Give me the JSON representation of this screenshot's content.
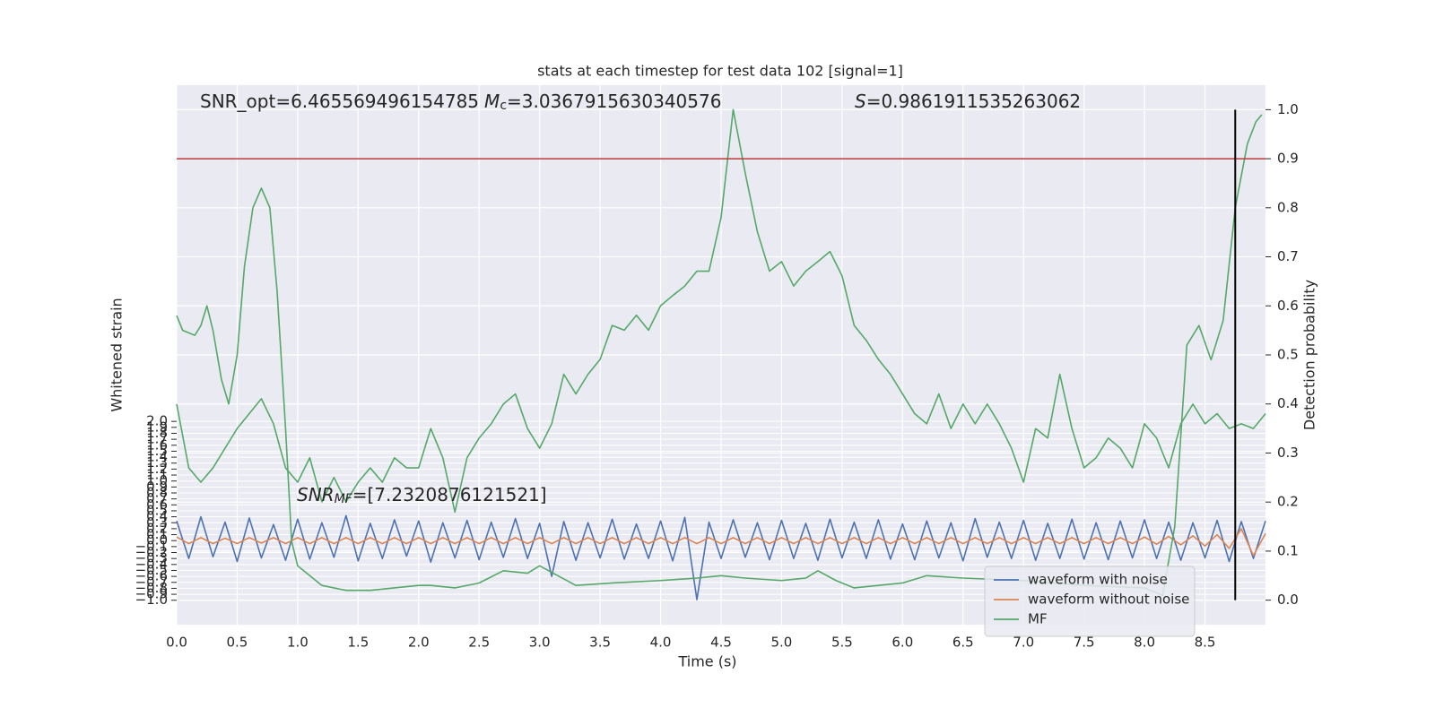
{
  "chart_data": {
    "type": "line",
    "title": "stats at each timestep for test data 102 [signal=1]",
    "xlabel": "Time (s)",
    "ylabel": "Whitened strain",
    "y2label": "Detection probability",
    "annotations": [
      [
        "SNR_opt=6.465569496154785",
        "M",
        "c",
        "=3.0367915630340576"
      ],
      [
        "S",
        "=0.9861911535263062"
      ],
      [
        "SNR",
        "MF",
        "=[7.2320876121521]"
      ]
    ],
    "xlim": [
      0,
      9
    ],
    "ylim": [
      -1.41,
      7.64
    ],
    "y2lim": [
      -0.05,
      1.05
    ],
    "xticks": [
      {
        "value": 0,
        "label": "0.0"
      },
      0.5,
      {
        "value": 1,
        "label": "1.0"
      },
      1.5,
      {
        "value": 2,
        "label": "2.0"
      },
      2.5,
      {
        "value": 3,
        "label": "3.0"
      },
      3.5,
      {
        "value": 4,
        "label": "4.0"
      },
      4.5,
      {
        "value": 5,
        "label": "5.0"
      },
      5.5,
      {
        "value": 6,
        "label": "6.0"
      },
      6.5,
      {
        "value": 7,
        "label": "7.0"
      },
      7.5,
      {
        "value": 8,
        "label": "8.0"
      },
      8.5
    ],
    "yticks": [
      {
        "value": -1,
        "label": "−1.0"
      },
      {
        "value": -0.9,
        "label": "−0.9"
      },
      {
        "value": -0.8,
        "label": "−0.8"
      },
      {
        "value": -0.7,
        "label": "−0.7"
      },
      {
        "value": -0.6,
        "label": "−0.6"
      },
      {
        "value": -0.5,
        "label": "−0.5"
      },
      {
        "value": -0.4,
        "label": "−0.4"
      },
      {
        "value": -0.3,
        "label": "−0.3"
      },
      {
        "value": -0.2,
        "label": "−0.2"
      },
      {
        "value": -0.1,
        "label": "−0.1"
      },
      {
        "value": 0,
        "label": "0.0"
      },
      0.1,
      0.2,
      0.3,
      0.4,
      0.5,
      0.6,
      0.7,
      0.8,
      0.9,
      {
        "value": 1,
        "label": "1.0"
      },
      1.1,
      1.2,
      1.3,
      1.4,
      1.5,
      1.6,
      1.7,
      1.8,
      1.9,
      {
        "value": 2,
        "label": "2.0"
      }
    ],
    "y2ticks": [
      {
        "value": 0,
        "label": "0.0"
      },
      0.1,
      0.2,
      0.3,
      0.4,
      0.5,
      0.6,
      0.7,
      0.8,
      0.9,
      {
        "value": 1,
        "label": "1.0"
      }
    ],
    "grid": true,
    "legend": "lower right",
    "x": [
      0,
      0.1,
      0.2,
      0.3,
      0.4,
      0.5,
      0.6,
      0.7,
      0.8,
      0.9,
      1,
      1.1,
      1.2,
      1.3,
      1.4,
      1.5,
      1.6,
      1.7,
      1.8,
      1.9,
      2,
      2.1,
      2.2,
      2.3,
      2.4,
      2.5,
      2.6,
      2.7,
      2.8,
      2.9,
      3,
      3.1,
      3.2,
      3.3,
      3.4,
      3.5,
      3.6,
      3.7,
      3.8,
      3.9,
      4,
      4.1,
      4.2,
      4.3,
      4.4,
      4.5,
      4.6,
      4.7,
      4.8,
      4.9,
      5,
      5.1,
      5.2,
      5.3,
      5.4,
      5.5,
      5.6,
      5.7,
      5.8,
      5.9,
      6,
      6.1,
      6.2,
      6.3,
      6.4,
      6.5,
      6.6,
      6.7,
      6.8,
      6.9,
      7,
      7.1,
      7.2,
      7.3,
      7.4,
      7.5,
      7.6,
      7.7,
      7.8,
      7.9,
      8,
      8.1,
      8.2,
      8.3,
      8.4,
      8.5,
      8.6,
      8.7,
      8.8,
      8.9,
      9
    ],
    "series": [
      {
        "name": "waveform with noise",
        "color": "#4c72b0",
        "values": [
          0.33,
          -0.3,
          0.4,
          -0.27,
          0.31,
          -0.35,
          0.38,
          -0.29,
          0.27,
          -0.33,
          0.36,
          -0.31,
          0.3,
          -0.28,
          0.42,
          -0.34,
          0.29,
          -0.3,
          0.35,
          -0.26,
          0.33,
          -0.36,
          0.3,
          -0.29,
          0.34,
          -0.32,
          0.31,
          -0.28,
          0.37,
          -0.3,
          0.29,
          -0.6,
          0.32,
          -0.33,
          0.3,
          -0.29,
          0.36,
          -0.31,
          0.28,
          -0.3,
          0.33,
          -0.34,
          0.39,
          -0.99,
          0.31,
          -0.3,
          0.35,
          -0.28,
          0.3,
          -0.32,
          0.34,
          -0.3,
          0.29,
          -0.33,
          0.36,
          -0.29,
          0.31,
          -0.3,
          0.35,
          -0.31,
          0.28,
          -0.32,
          0.33,
          -0.29,
          0.3,
          -0.34,
          0.37,
          -0.28,
          0.31,
          -0.3,
          0.34,
          -0.33,
          0.29,
          -0.3,
          0.36,
          -0.31,
          0.3,
          -0.32,
          0.33,
          -0.29,
          0.35,
          -0.3,
          0.31,
          -0.33,
          0.3,
          -0.29,
          0.34,
          -0.35,
          0.32,
          -0.3,
          0.33
        ]
      },
      {
        "name": "waveform without noise",
        "color": "#dd8452",
        "values": [
          0.06,
          -0.05,
          0.05,
          -0.05,
          0.04,
          -0.05,
          0.05,
          -0.04,
          0.05,
          -0.05,
          0.05,
          -0.05,
          0.05,
          -0.05,
          0.05,
          -0.05,
          0.05,
          -0.05,
          0.05,
          -0.05,
          0.05,
          -0.05,
          0.05,
          -0.05,
          0.05,
          -0.05,
          0.05,
          -0.05,
          0.05,
          -0.05,
          0.05,
          -0.05,
          0.05,
          -0.05,
          0.05,
          -0.05,
          0.05,
          -0.05,
          0.05,
          -0.05,
          0.05,
          -0.05,
          0.05,
          -0.05,
          0.05,
          -0.05,
          0.05,
          -0.05,
          0.05,
          -0.05,
          0.05,
          -0.05,
          0.05,
          -0.05,
          0.05,
          -0.05,
          0.05,
          -0.05,
          0.05,
          -0.05,
          0.05,
          -0.05,
          0.05,
          -0.05,
          0.05,
          -0.05,
          0.05,
          -0.05,
          0.05,
          -0.05,
          0.05,
          -0.05,
          0.05,
          -0.05,
          0.05,
          -0.05,
          0.05,
          -0.05,
          0.05,
          -0.05,
          0.06,
          -0.06,
          0.07,
          -0.07,
          0.08,
          -0.09,
          0.1,
          -0.13,
          0.2,
          -0.25,
          0.12
        ]
      },
      {
        "name": "MF",
        "color": "#55a868",
        "values": [
          2.29,
          1.22,
          0.98,
          1.22,
          1.55,
          1.88,
          2.13,
          2.38,
          1.96,
          1.22,
          0.98,
          1.39,
          0.65,
          1.06,
          0.65,
          0.98,
          1.22,
          0.98,
          1.39,
          1.22,
          1.22,
          1.88,
          1.39,
          0.48,
          1.39,
          1.72,
          1.96,
          2.29,
          2.46,
          1.88,
          1.55,
          1.96,
          2.79,
          2.46,
          2.79,
          3.04,
          3.61,
          3.53,
          3.78,
          3.53,
          3.94,
          4.11,
          4.27,
          4.52,
          4.52,
          5.42,
          7.23,
          6.16,
          5.18,
          4.52,
          4.68,
          4.27,
          4.52,
          4.68,
          4.85,
          4.44,
          3.61,
          3.36,
          3.04,
          2.79,
          2.46,
          2.13,
          1.96,
          2.46,
          1.88,
          2.29,
          1.96,
          2.29,
          1.96,
          1.55,
          0.98,
          1.88,
          1.72,
          2.79,
          1.88,
          1.22,
          1.39,
          1.72,
          1.55,
          1.22,
          1.96,
          1.72,
          1.22,
          1.96,
          2.29,
          1.96,
          2.13,
          1.88,
          1.96,
          1.88,
          2.13
        ]
      },
      {
        "color": "#55a868",
        "axis": "y2",
        "x": [
          0,
          0.05,
          0.15,
          0.2,
          0.25,
          0.3,
          0.37,
          0.43,
          0.5,
          0.56,
          0.63,
          0.7,
          0.77,
          0.83,
          0.9,
          0.95,
          1,
          1.2,
          1.4,
          1.6,
          2,
          2.1,
          2.3,
          2.5,
          2.7,
          2.9,
          3,
          3.15,
          3.3,
          3.6,
          4,
          4.3,
          4.5,
          4.7,
          5,
          5.2,
          5.3,
          5.45,
          5.6,
          6,
          6.2,
          6.5,
          7,
          7.5,
          8,
          8.15,
          8.25,
          8.35,
          8.45,
          8.55,
          8.65,
          8.75,
          8.85,
          8.92,
          8.97
        ],
        "values": [
          0.58,
          0.55,
          0.54,
          0.56,
          0.6,
          0.55,
          0.45,
          0.4,
          0.5,
          0.68,
          0.8,
          0.84,
          0.8,
          0.63,
          0.35,
          0.12,
          0.07,
          0.03,
          0.02,
          0.02,
          0.03,
          0.03,
          0.025,
          0.035,
          0.06,
          0.055,
          0.07,
          0.05,
          0.03,
          0.035,
          0.04,
          0.045,
          0.05,
          0.045,
          0.04,
          0.045,
          0.06,
          0.04,
          0.025,
          0.035,
          0.05,
          0.045,
          0.04,
          0.03,
          0.025,
          0.01,
          0.15,
          0.52,
          0.56,
          0.49,
          0.57,
          0.8,
          0.93,
          0.975,
          0.99
        ]
      }
    ],
    "hlines": [
      {
        "y": 0.9,
        "axis": "y2",
        "color": "#b83a3a"
      }
    ],
    "vlines": [
      {
        "x": 8.75,
        "ymin": 0,
        "ymax": 1,
        "axis": "y2",
        "color": "#000000"
      }
    ]
  }
}
